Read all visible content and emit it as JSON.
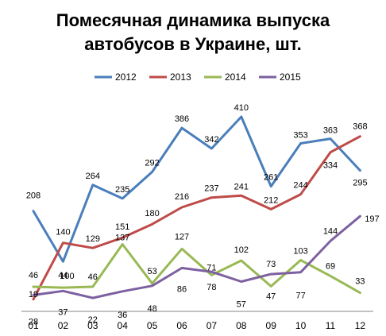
{
  "chart_data": {
    "type": "line",
    "title_lines": [
      "Помесячная динамика выпуска",
      "автобусов в Украине, шт."
    ],
    "categories": [
      "01",
      "02",
      "03",
      "04",
      "05",
      "06",
      "07",
      "08",
      "09",
      "10",
      "11",
      "12"
    ],
    "series": [
      {
        "name": "2012",
        "color": "#4a7ebb",
        "values": [
          208,
          100,
          264,
          235,
          292,
          386,
          342,
          410,
          261,
          353,
          363,
          295
        ]
      },
      {
        "name": "2013",
        "color": "#be4b48",
        "values": [
          19,
          140,
          129,
          151,
          180,
          216,
          237,
          241,
          212,
          244,
          334,
          368
        ]
      },
      {
        "name": "2014",
        "color": "#98b954",
        "values": [
          46,
          44,
          46,
          137,
          53,
          127,
          71,
          102,
          47,
          103,
          69,
          33
        ]
      },
      {
        "name": "2015",
        "color": "#7d60a0",
        "values": [
          28,
          37,
          22,
          36,
          48,
          86,
          78,
          57,
          73,
          77,
          144,
          197
        ]
      }
    ],
    "ylim": [
      0,
      410
    ],
    "legend_position": "top",
    "grid": false
  }
}
